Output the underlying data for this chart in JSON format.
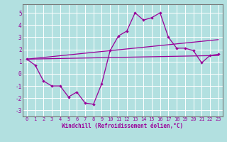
{
  "xlabel": "Windchill (Refroidissement éolien,°C)",
  "bg_color": "#b2e0e0",
  "line_color": "#990099",
  "grid_color": "#ffffff",
  "xlim": [
    -0.5,
    23.5
  ],
  "ylim": [
    -3.5,
    5.7
  ],
  "yticks": [
    -3,
    -2,
    -1,
    0,
    1,
    2,
    3,
    4,
    5
  ],
  "xticks": [
    0,
    1,
    2,
    3,
    4,
    5,
    6,
    7,
    8,
    9,
    10,
    11,
    12,
    13,
    14,
    15,
    16,
    17,
    18,
    19,
    20,
    21,
    22,
    23
  ],
  "zigzag": [
    1.2,
    0.7,
    -0.6,
    -1.0,
    -1.0,
    -1.9,
    -1.5,
    -2.4,
    -2.5,
    -0.8,
    1.9,
    3.1,
    3.5,
    5.0,
    4.4,
    4.6,
    5.0,
    3.0,
    2.1,
    2.1,
    1.9,
    0.9,
    1.5,
    1.6
  ],
  "line1_start": 1.2,
  "line1_end": 1.5,
  "line2_start": 1.2,
  "line2_end": 2.8
}
